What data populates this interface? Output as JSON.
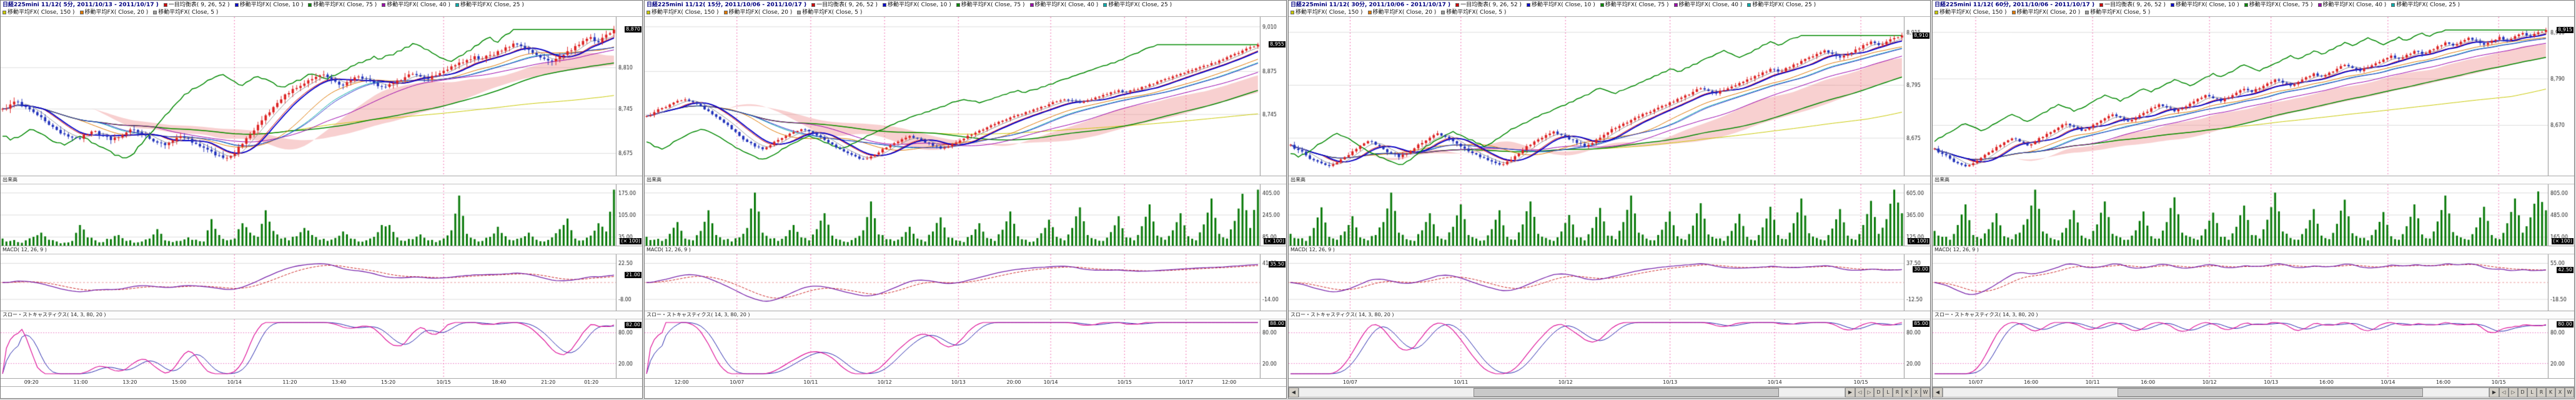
{
  "colors": {
    "grid": "#dcdcdc",
    "axis_text": "#222222",
    "session_line": "#f070b0",
    "candle_up": "#dd2222",
    "candle_down": "#2233bb",
    "cloud": "rgba(235,120,120,0.35)",
    "volume_bar": "#0a7a0a",
    "macd_line": "#7722aa",
    "macd_signal": "#cc2222",
    "zero_line": "#e89898",
    "stoch_k": "#dd1199",
    "stoch_d": "#2222aa",
    "stoch_ref": "#ee88cc",
    "ma150": "#c8c800",
    "ma75": "#008800",
    "ma40": "#9900aa",
    "ma25": "#00aaaa",
    "ma20": "#dd7700",
    "ma10": "#0000cc",
    "ma5": "#999999",
    "tenkan": "#cc0000",
    "kijun": "#3333cc"
  },
  "legend_line1": [
    {
      "label": "一目均衡表( 9, 26, 52 )",
      "color": "#cc0000"
    },
    {
      "label": "移動平均FX( Close, 10 )",
      "color": "#0000cc"
    },
    {
      "label": "移動平均FX( Close, 75 )",
      "color": "#008800"
    },
    {
      "label": "移動平均FX( Close, 40 )",
      "color": "#9900aa"
    },
    {
      "label": "移動平均FX( Close, 25 )",
      "color": "#00aaaa"
    }
  ],
  "legend_line2": [
    {
      "label": "移動平均FX( Close, 150 )",
      "color": "#c8c800"
    },
    {
      "label": "移動平均FX( Close, 20 )",
      "color": "#dd7700"
    },
    {
      "label": "移動平均FX( Close, 5 )",
      "color": "#999999"
    }
  ],
  "sub_labels": {
    "volume": "出来高",
    "macd": "MACD( 12, 26, 9 )",
    "stoch": "スロー・ストキャスティクス( 14, 3, 80, 20 )"
  },
  "volume_unit": "(× 100)",
  "scrollbar_buttons": [
    "◀",
    "▶"
  ],
  "corner_buttons": [
    "◁",
    "▷",
    "D",
    "L",
    "R",
    "K",
    "X",
    "W"
  ],
  "panels": [
    {
      "title": "日経225mini 11/12( 5分, 2011/10/13 - 2011/10/17 )",
      "scrollbar": false,
      "price": {
        "min": 8640,
        "max": 8890,
        "badge": "8,870",
        "grid": [
          {
            "v": 8810,
            "t": "8,810"
          },
          {
            "v": 8745,
            "t": "8,745"
          },
          {
            "v": 8675,
            "t": "8,675"
          }
        ]
      },
      "volume": {
        "grid": [
          {
            "f": 0.14,
            "t": "175.00"
          },
          {
            "f": 0.5,
            "t": "105.00"
          },
          {
            "f": 0.86,
            "t": "35.00"
          }
        ],
        "values": [
          12,
          8,
          6,
          9,
          15,
          22,
          10,
          7,
          5,
          8,
          35,
          14,
          9,
          6,
          11,
          18,
          8,
          5,
          7,
          12,
          28,
          9,
          6,
          8,
          14,
          10,
          7,
          45,
          18,
          9,
          12,
          38,
          22,
          15,
          60,
          25,
          12,
          9,
          16,
          30,
          18,
          10,
          8,
          13,
          24,
          12,
          7,
          9,
          15,
          35,
          35,
          14,
          8,
          11,
          19,
          9,
          6,
          12,
          26,
          85,
          20,
          11,
          8,
          15,
          32,
          16,
          9,
          13,
          22,
          10,
          7,
          14,
          28,
          46,
          12,
          9,
          17,
          38,
          24,
          95
        ]
      },
      "macd": {
        "badge": "21.00",
        "grid": [
          {
            "f": 0.16,
            "t": "22.50"
          },
          {
            "f": 0.8,
            "t": "-8.00"
          }
        ]
      },
      "stoch": {
        "badge": "82.00",
        "grid": [
          {
            "v": 80,
            "t": "80.00"
          },
          {
            "v": 20,
            "t": "20.00"
          }
        ]
      },
      "closes": [
        8745,
        8752,
        8756,
        8748,
        8740,
        8732,
        8720,
        8712,
        8705,
        8700,
        8698,
        8705,
        8710,
        8702,
        8696,
        8700,
        8708,
        8712,
        8706,
        8698,
        8692,
        8688,
        8695,
        8702,
        8698,
        8690,
        8684,
        8678,
        8672,
        8668,
        8675,
        8690,
        8705,
        8720,
        8735,
        8748,
        8760,
        8770,
        8778,
        8785,
        8792,
        8798,
        8795,
        8788,
        8782,
        8790,
        8796,
        8792,
        8786,
        8780,
        8784,
        8790,
        8795,
        8800,
        8796,
        8792,
        8798,
        8805,
        8812,
        8818,
        8822,
        8828,
        8824,
        8830,
        8836,
        8842,
        8848,
        8844,
        8838,
        8830,
        8824,
        8820,
        8828,
        8836,
        8844,
        8852,
        8858,
        8850,
        8862,
        8870
      ],
      "xlabels": [
        {
          "p": 0.05,
          "t": "09:20"
        },
        {
          "p": 0.13,
          "t": "11:00"
        },
        {
          "p": 0.21,
          "t": "13:20"
        },
        {
          "p": 0.29,
          "t": "15:00"
        },
        {
          "p": 0.38,
          "t": "10/14",
          "day": true
        },
        {
          "p": 0.47,
          "t": "11:20"
        },
        {
          "p": 0.55,
          "t": "13:40"
        },
        {
          "p": 0.63,
          "t": "15:20"
        },
        {
          "p": 0.72,
          "t": "10/15",
          "day": true
        },
        {
          "p": 0.81,
          "t": "18:40"
        },
        {
          "p": 0.89,
          "t": "21:20"
        },
        {
          "p": 0.96,
          "t": "01:20"
        }
      ]
    },
    {
      "title": "日経225mini 11/12( 15分, 2011/10/06 - 2011/10/17 )",
      "scrollbar": false,
      "price": {
        "min": 8560,
        "max": 9040,
        "badge": "8,955",
        "grid": [
          {
            "v": 9010,
            "t": "9,010"
          },
          {
            "v": 8875,
            "t": "8,875"
          },
          {
            "v": 8745,
            "t": "8,745"
          }
        ]
      },
      "volume": {
        "grid": [
          {
            "f": 0.14,
            "t": "405.00"
          },
          {
            "f": 0.5,
            "t": "245.00"
          },
          {
            "f": 0.86,
            "t": "85.00"
          }
        ],
        "values": [
          15,
          10,
          8,
          20,
          40,
          12,
          9,
          25,
          60,
          18,
          10,
          7,
          14,
          30,
          90,
          22,
          12,
          8,
          16,
          35,
          14,
          9,
          28,
          55,
          17,
          10,
          6,
          13,
          26,
          75,
          19,
          11,
          8,
          15,
          32,
          12,
          7,
          24,
          48,
          14,
          9,
          6,
          18,
          38,
          13,
          8,
          27,
          58,
          16,
          10,
          7,
          21,
          44,
          15,
          9,
          30,
          65,
          18,
          11,
          8,
          23,
          50,
          14,
          9,
          33,
          70,
          17,
          10,
          26,
          55,
          16,
          9,
          36,
          80,
          20,
          12,
          42,
          88,
          30,
          95
        ]
      },
      "macd": {
        "badge": "35.50",
        "grid": [
          {
            "f": 0.16,
            "t": "41.00"
          },
          {
            "f": 0.8,
            "t": "-14.00"
          }
        ]
      },
      "stoch": {
        "badge": "88.00",
        "grid": [
          {
            "v": 80,
            "t": "80.00"
          },
          {
            "v": 20,
            "t": "20.00"
          }
        ]
      },
      "closes": [
        8740,
        8752,
        8764,
        8775,
        8786,
        8790,
        8782,
        8770,
        8755,
        8738,
        8720,
        8700,
        8680,
        8662,
        8648,
        8640,
        8652,
        8668,
        8680,
        8692,
        8700,
        8694,
        8682,
        8668,
        8654,
        8640,
        8628,
        8618,
        8610,
        8618,
        8630,
        8645,
        8658,
        8670,
        8680,
        8672,
        8660,
        8650,
        8642,
        8648,
        8660,
        8672,
        8684,
        8696,
        8706,
        8716,
        8726,
        8736,
        8744,
        8752,
        8760,
        8768,
        8776,
        8784,
        8790,
        8786,
        8780,
        8788,
        8796,
        8804,
        8812,
        8818,
        8812,
        8820,
        8828,
        8836,
        8844,
        8852,
        8860,
        8868,
        8876,
        8884,
        8892,
        8900,
        8908,
        8918,
        8928,
        8938,
        8948,
        8956
      ],
      "xlabels": [
        {
          "p": 0.06,
          "t": "12:00"
        },
        {
          "p": 0.15,
          "t": "10/07",
          "day": true
        },
        {
          "p": 0.27,
          "t": "10/11",
          "day": true
        },
        {
          "p": 0.39,
          "t": "10/12",
          "day": true
        },
        {
          "p": 0.51,
          "t": "10/13",
          "day": true
        },
        {
          "p": 0.6,
          "t": "20:00"
        },
        {
          "p": 0.66,
          "t": "10/14",
          "day": true
        },
        {
          "p": 0.78,
          "t": "10/15",
          "day": true
        },
        {
          "p": 0.88,
          "t": "10/17",
          "day": true
        },
        {
          "p": 0.95,
          "t": "12:00"
        }
      ]
    },
    {
      "title": "日経225mini 11/12( 30分, 2011/10/06 - 2011/10/17 )",
      "scrollbar": true,
      "price": {
        "min": 8590,
        "max": 8950,
        "badge": "8,910",
        "grid": [
          {
            "v": 8915,
            "t": "8,915"
          },
          {
            "v": 8795,
            "t": "8,795"
          },
          {
            "v": 8675,
            "t": "8,675"
          }
        ]
      },
      "volume": {
        "grid": [
          {
            "f": 0.14,
            "t": "605.00"
          },
          {
            "f": 0.5,
            "t": "365.00"
          },
          {
            "f": 0.86,
            "t": "125.00"
          }
        ],
        "values": [
          20,
          12,
          8,
          30,
          65,
          15,
          10,
          24,
          50,
          14,
          9,
          18,
          40,
          90,
          22,
          11,
          8,
          26,
          55,
          16,
          10,
          32,
          70,
          18,
          12,
          9,
          28,
          60,
          15,
          10,
          36,
          75,
          20,
          13,
          8,
          24,
          52,
          14,
          9,
          30,
          64,
          17,
          11,
          40,
          85,
          22,
          12,
          9,
          27,
          58,
          16,
          10,
          34,
          72,
          19,
          12,
          8,
          25,
          54,
          15,
          9,
          31,
          66,
          18,
          11,
          38,
          80,
          21,
          13,
          9,
          29,
          62,
          17,
          10,
          35,
          76,
          20,
          45,
          95,
          55
        ]
      },
      "macd": {
        "badge": "30.00",
        "grid": [
          {
            "f": 0.16,
            "t": "37.50"
          },
          {
            "f": 0.8,
            "t": "-12.50"
          }
        ]
      },
      "stoch": {
        "badge": "85.00",
        "grid": [
          {
            "v": 80,
            "t": "80.00"
          },
          {
            "v": 20,
            "t": "20.00"
          }
        ]
      },
      "closes": [
        8660,
        8648,
        8636,
        8625,
        8618,
        8612,
        8620,
        8632,
        8645,
        8658,
        8668,
        8660,
        8650,
        8640,
        8632,
        8640,
        8652,
        8664,
        8676,
        8686,
        8678,
        8668,
        8656,
        8645,
        8638,
        8630,
        8622,
        8615,
        8622,
        8634,
        8648,
        8660,
        8672,
        8682,
        8690,
        8682,
        8672,
        8664,
        8656,
        8664,
        8676,
        8688,
        8698,
        8708,
        8716,
        8724,
        8732,
        8740,
        8748,
        8756,
        8764,
        8772,
        8780,
        8788,
        8782,
        8776,
        8784,
        8792,
        8800,
        8808,
        8816,
        8824,
        8832,
        8826,
        8834,
        8842,
        8850,
        8858,
        8866,
        8874,
        8866,
        8858,
        8866,
        8876,
        8886,
        8894,
        8886,
        8894,
        8902,
        8908
      ],
      "xlabels": [
        {
          "p": 0.1,
          "t": "10/07",
          "day": true
        },
        {
          "p": 0.28,
          "t": "10/11",
          "day": true
        },
        {
          "p": 0.45,
          "t": "10/12",
          "day": true
        },
        {
          "p": 0.62,
          "t": "10/13",
          "day": true
        },
        {
          "p": 0.79,
          "t": "10/14",
          "day": true
        },
        {
          "p": 0.93,
          "t": "10/15",
          "day": true
        }
      ]
    },
    {
      "title": "日経225mini 11/12( 60分, 2011/10/06 - 2011/10/17 )",
      "scrollbar": true,
      "price": {
        "min": 8540,
        "max": 8950,
        "badge": "8,915",
        "grid": [
          {
            "v": 8910,
            "t": "8,910"
          },
          {
            "v": 8790,
            "t": "8,790"
          },
          {
            "v": 8670,
            "t": "8,670"
          }
        ]
      },
      "volume": {
        "grid": [
          {
            "f": 0.14,
            "t": "805.00"
          },
          {
            "f": 0.5,
            "t": "485.00"
          },
          {
            "f": 0.86,
            "t": "165.00"
          }
        ],
        "values": [
          25,
          15,
          10,
          35,
          70,
          18,
          12,
          28,
          55,
          16,
          11,
          22,
          45,
          95,
          24,
          13,
          9,
          30,
          60,
          17,
          11,
          36,
          75,
          20,
          14,
          10,
          26,
          58,
          16,
          12,
          40,
          82,
          22,
          15,
          10,
          28,
          56,
          15,
          10,
          32,
          68,
          18,
          12,
          44,
          90,
          24,
          13,
          10,
          29,
          62,
          17,
          11,
          37,
          78,
          21,
          13,
          9,
          27,
          57,
          16,
          10,
          33,
          70,
          19,
          12,
          41,
          85,
          23,
          14,
          10,
          31,
          66,
          18,
          11,
          38,
          80,
          22,
          48,
          92,
          60
        ]
      },
      "macd": {
        "badge": "42.50",
        "grid": [
          {
            "f": 0.16,
            "t": "55.00"
          },
          {
            "f": 0.8,
            "t": "-18.50"
          }
        ]
      },
      "stoch": {
        "badge": "80.00",
        "grid": [
          {
            "v": 80,
            "t": "80.00"
          },
          {
            "v": 20,
            "t": "20.00"
          }
        ]
      },
      "closes": [
        8610,
        8596,
        8584,
        8572,
        8564,
        8572,
        8586,
        8600,
        8614,
        8626,
        8636,
        8628,
        8618,
        8628,
        8640,
        8652,
        8664,
        8674,
        8666,
        8656,
        8664,
        8676,
        8688,
        8698,
        8690,
        8680,
        8690,
        8702,
        8714,
        8724,
        8716,
        8706,
        8714,
        8726,
        8738,
        8748,
        8740,
        8732,
        8742,
        8754,
        8764,
        8756,
        8766,
        8778,
        8788,
        8780,
        8772,
        8782,
        8794,
        8804,
        8796,
        8806,
        8816,
        8826,
        8818,
        8810,
        8820,
        8830,
        8840,
        8850,
        8842,
        8852,
        8862,
        8854,
        8864,
        8874,
        8884,
        8876,
        8886,
        8896,
        8888,
        8878,
        8888,
        8898,
        8890,
        8900,
        8908,
        8900,
        8910,
        8916
      ],
      "xlabels": [
        {
          "p": 0.07,
          "t": "10/07",
          "day": true
        },
        {
          "p": 0.16,
          "t": "16:00"
        },
        {
          "p": 0.26,
          "t": "10/11",
          "day": true
        },
        {
          "p": 0.35,
          "t": "16:00"
        },
        {
          "p": 0.45,
          "t": "10/12",
          "day": true
        },
        {
          "p": 0.55,
          "t": "10/13",
          "day": true
        },
        {
          "p": 0.64,
          "t": "16:00"
        },
        {
          "p": 0.74,
          "t": "10/14",
          "day": true
        },
        {
          "p": 0.83,
          "t": "16:00"
        },
        {
          "p": 0.92,
          "t": "10/15",
          "day": true
        }
      ]
    }
  ]
}
